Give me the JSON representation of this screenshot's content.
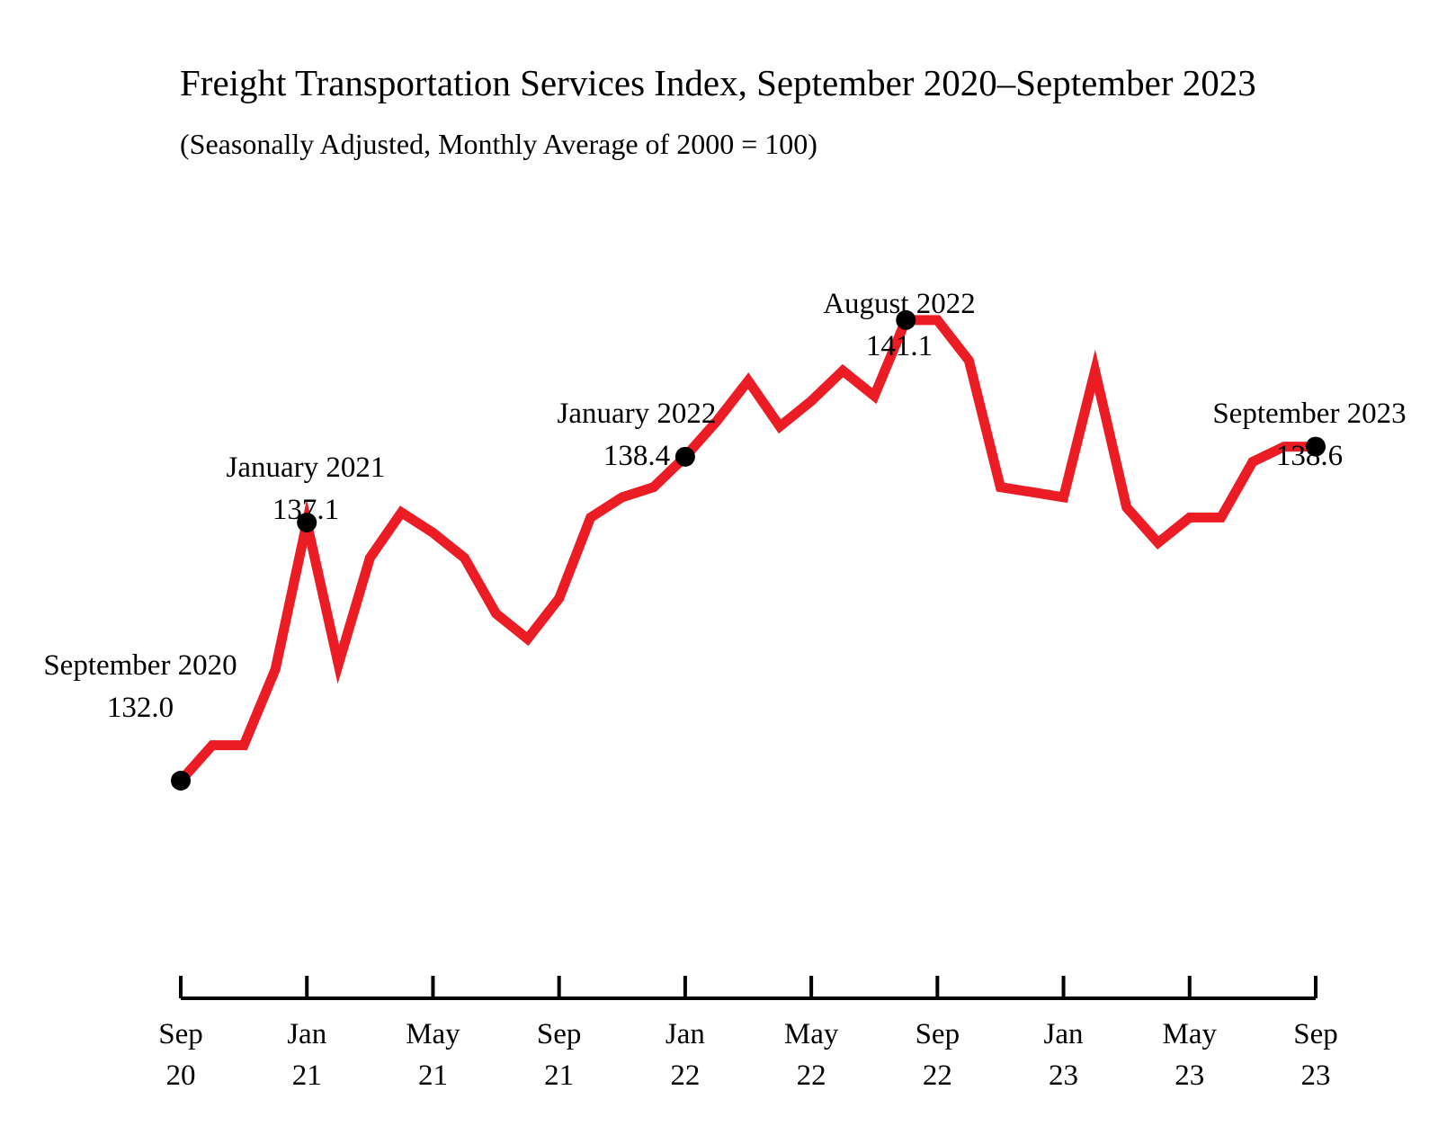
{
  "chart_data": {
    "type": "line",
    "title": "Freight Transportation Services Index, September 2020–September 2023",
    "subtitle": "(Seasonally Adjusted, Monthly Average of 2000 = 100)",
    "xlabel": "",
    "ylabel": "",
    "ylim": [
      127.7,
      146.5
    ],
    "grid": false,
    "legend": "none",
    "line_color": "#ec1c24",
    "marker_color": "#000000",
    "x": [
      "2020-09",
      "2020-10",
      "2020-11",
      "2020-12",
      "2021-01",
      "2021-02",
      "2021-03",
      "2021-04",
      "2021-05",
      "2021-06",
      "2021-07",
      "2021-08",
      "2021-09",
      "2021-10",
      "2021-11",
      "2021-12",
      "2022-01",
      "2022-02",
      "2022-03",
      "2022-04",
      "2022-05",
      "2022-06",
      "2022-07",
      "2022-08",
      "2022-09",
      "2022-10",
      "2022-11",
      "2022-12",
      "2023-01",
      "2023-02",
      "2023-03",
      "2023-04",
      "2023-05",
      "2023-06",
      "2023-07",
      "2023-08",
      "2023-09"
    ],
    "series": [
      {
        "values": [
          132.0,
          132.7,
          132.7,
          134.2,
          137.1,
          134.3,
          136.4,
          137.3,
          136.9,
          136.4,
          135.3,
          134.8,
          135.6,
          137.2,
          137.6,
          137.8,
          138.4,
          139.1,
          139.9,
          139.0,
          139.5,
          140.1,
          139.6,
          141.1,
          141.1,
          140.3,
          137.8,
          137.7,
          137.6,
          140.1,
          137.4,
          136.7,
          137.2,
          137.2,
          138.3,
          138.6,
          138.6
        ]
      }
    ],
    "ticks": [
      {
        "x": "2020-09",
        "label": [
          "Sep",
          "20"
        ]
      },
      {
        "x": "2021-01",
        "label": [
          "Jan",
          "21"
        ]
      },
      {
        "x": "2021-05",
        "label": [
          "May",
          "21"
        ]
      },
      {
        "x": "2021-09",
        "label": [
          "Sep",
          "21"
        ]
      },
      {
        "x": "2022-01",
        "label": [
          "Jan",
          "22"
        ]
      },
      {
        "x": "2022-05",
        "label": [
          "May",
          "22"
        ]
      },
      {
        "x": "2022-09",
        "label": [
          "Sep",
          "22"
        ]
      },
      {
        "x": "2023-01",
        "label": [
          "Jan",
          "23"
        ]
      },
      {
        "x": "2023-05",
        "label": [
          "May",
          "23"
        ]
      },
      {
        "x": "2023-09",
        "label": [
          "Sep",
          "23"
        ]
      }
    ],
    "annotations": [
      {
        "x": "2020-09",
        "value": 132.0,
        "label": "September 2020",
        "value_label": "132.0"
      },
      {
        "x": "2021-01",
        "value": 137.1,
        "label": "January 2021",
        "value_label": "137.1"
      },
      {
        "x": "2022-01",
        "value": 138.4,
        "label": "January 2022",
        "value_label": "138.4"
      },
      {
        "x": "2022-08",
        "value": 141.1,
        "label": "August 2022",
        "value_label": "141.1"
      },
      {
        "x": "2023-09",
        "value": 138.6,
        "label": "September 2023",
        "value_label": "138.6"
      }
    ]
  }
}
